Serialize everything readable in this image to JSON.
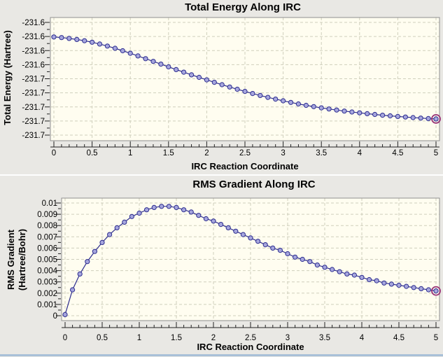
{
  "window": {
    "background": "#e9e8e4",
    "bottom_edge_color": "#a8c0d8"
  },
  "chart_data": [
    {
      "type": "line",
      "title": "Total Energy Along IRC",
      "xlabel": "IRC Reaction Coordinate",
      "ylabel": "Total Energy (Hartree)",
      "ylabel_lines": [
        "Total Energy (Hartree)"
      ],
      "xlim": [
        0,
        5
      ],
      "ylim": [
        -231.72,
        -231.6
      ],
      "grid": true,
      "legend": "none",
      "minor_x_step": 0.1,
      "xticks": [
        {
          "v": 0,
          "label": "0"
        },
        {
          "v": 0.5,
          "label": "0.5"
        },
        {
          "v": 1,
          "label": "1"
        },
        {
          "v": 1.5,
          "label": "1.5"
        },
        {
          "v": 2,
          "label": "2"
        },
        {
          "v": 2.5,
          "label": "2.5"
        },
        {
          "v": 3,
          "label": "3"
        },
        {
          "v": 3.5,
          "label": "3.5"
        },
        {
          "v": 4,
          "label": "4"
        },
        {
          "v": 4.5,
          "label": "4.5"
        },
        {
          "v": 5,
          "label": "5"
        }
      ],
      "yticks": [
        {
          "v": -231.6,
          "label": "-231.6"
        },
        {
          "v": -231.615,
          "label": "-231.6"
        },
        {
          "v": -231.63,
          "label": "-231.6"
        },
        {
          "v": -231.645,
          "label": "-231.6"
        },
        {
          "v": -231.66,
          "label": "-231.7"
        },
        {
          "v": -231.675,
          "label": "-231.7"
        },
        {
          "v": -231.69,
          "label": "-231.7"
        },
        {
          "v": -231.705,
          "label": "-231.7"
        },
        {
          "v": -231.72,
          "label": "-231.7"
        }
      ],
      "x": [
        0,
        0.1,
        0.2,
        0.3,
        0.4,
        0.5,
        0.6,
        0.7,
        0.8,
        0.9,
        1,
        1.1,
        1.2,
        1.3,
        1.4,
        1.5,
        1.6,
        1.7,
        1.8,
        1.9,
        2,
        2.1,
        2.2,
        2.3,
        2.4,
        2.5,
        2.6,
        2.7,
        2.8,
        2.9,
        3,
        3.1,
        3.2,
        3.3,
        3.4,
        3.5,
        3.6,
        3.7,
        3.8,
        3.9,
        4,
        4.1,
        4.2,
        4.3,
        4.4,
        4.5,
        4.6,
        4.7,
        4.8,
        4.9,
        5
      ],
      "y": [
        -231.6155,
        -231.6162,
        -231.6171,
        -231.6182,
        -231.6195,
        -231.6211,
        -231.623,
        -231.6252,
        -231.6276,
        -231.6302,
        -231.6329,
        -231.6357,
        -231.6386,
        -231.6415,
        -231.6444,
        -231.6473,
        -231.6502,
        -231.653,
        -231.6558,
        -231.6585,
        -231.6612,
        -231.6638,
        -231.6663,
        -231.6688,
        -231.6712,
        -231.6735,
        -231.6757,
        -231.6778,
        -231.6798,
        -231.6817,
        -231.6835,
        -231.6852,
        -231.6868,
        -231.6883,
        -231.6897,
        -231.691,
        -231.6922,
        -231.6933,
        -231.6944,
        -231.6954,
        -231.6963,
        -231.6972,
        -231.698,
        -231.6988,
        -231.6995,
        -231.7002,
        -231.7008,
        -231.7014,
        -231.7019,
        -231.7024,
        -231.7028
      ],
      "highlight_last_point": true,
      "colors": {
        "line": "#2d2d8f",
        "marker_fill": "#a6a6dd",
        "marker_stroke": "#2d2d8f",
        "grid": "#cfcfbc",
        "plot_bg": "#fffdf0",
        "highlight_ring": "#993377"
      }
    },
    {
      "type": "line",
      "title": "RMS Gradient Along IRC",
      "xlabel": "IRC Reaction Coordinate",
      "ylabel": "RMS Gradient (Hartree/Bohr)",
      "ylabel_lines": [
        "RMS Gradient",
        "(Hartree/Bohr)"
      ],
      "xlim": [
        0,
        5
      ],
      "ylim": [
        0,
        0.01
      ],
      "grid": true,
      "legend": "none",
      "minor_x_step": 0.1,
      "xticks": [
        {
          "v": 0,
          "label": "0"
        },
        {
          "v": 0.5,
          "label": "0.5"
        },
        {
          "v": 1,
          "label": "1"
        },
        {
          "v": 1.5,
          "label": "1.5"
        },
        {
          "v": 2,
          "label": "2"
        },
        {
          "v": 2.5,
          "label": "2.5"
        },
        {
          "v": 3,
          "label": "3"
        },
        {
          "v": 3.5,
          "label": "3.5"
        },
        {
          "v": 4,
          "label": "4"
        },
        {
          "v": 4.5,
          "label": "4.5"
        },
        {
          "v": 5,
          "label": "5"
        }
      ],
      "yticks": [
        {
          "v": 0.01,
          "label": "0.01"
        },
        {
          "v": 0.009,
          "label": "0.009"
        },
        {
          "v": 0.008,
          "label": "0.008"
        },
        {
          "v": 0.007,
          "label": "0.007"
        },
        {
          "v": 0.006,
          "label": "0.006"
        },
        {
          "v": 0.005,
          "label": "0.005"
        },
        {
          "v": 0.004,
          "label": "0.004"
        },
        {
          "v": 0.003,
          "label": "0.003"
        },
        {
          "v": 0.002,
          "label": "0.002"
        },
        {
          "v": 0.001,
          "label": "0.001"
        },
        {
          "v": 0,
          "label": "0"
        }
      ],
      "x": [
        0,
        0.1,
        0.2,
        0.3,
        0.4,
        0.5,
        0.6,
        0.7,
        0.8,
        0.9,
        1,
        1.1,
        1.2,
        1.3,
        1.4,
        1.5,
        1.6,
        1.7,
        1.8,
        1.9,
        2,
        2.1,
        2.2,
        2.3,
        2.4,
        2.5,
        2.6,
        2.7,
        2.8,
        2.9,
        3,
        3.1,
        3.2,
        3.3,
        3.4,
        3.5,
        3.6,
        3.7,
        3.8,
        3.9,
        4,
        4.1,
        4.2,
        4.3,
        4.4,
        4.5,
        4.6,
        4.7,
        4.8,
        4.9,
        5
      ],
      "y": [
        0.0001,
        0.0023,
        0.0037,
        0.0048,
        0.0057,
        0.0065,
        0.0072,
        0.0078,
        0.0083,
        0.0088,
        0.0091,
        0.0094,
        0.0096,
        0.0097,
        0.0097,
        0.0096,
        0.0094,
        0.0092,
        0.0089,
        0.0086,
        0.0084,
        0.0081,
        0.0078,
        0.0075,
        0.0072,
        0.0069,
        0.0066,
        0.0063,
        0.006,
        0.0058,
        0.0055,
        0.0052,
        0.005,
        0.0048,
        0.0045,
        0.0043,
        0.0041,
        0.0039,
        0.0037,
        0.0036,
        0.0034,
        0.0032,
        0.0031,
        0.0029,
        0.0028,
        0.0027,
        0.0026,
        0.0025,
        0.0024,
        0.0023,
        0.0022
      ],
      "highlight_last_point": true,
      "colors": {
        "line": "#2d2d8f",
        "marker_fill": "#a6a6dd",
        "marker_stroke": "#2d2d8f",
        "grid": "#cfcfbc",
        "plot_bg": "#fffdf0",
        "highlight_ring": "#993377"
      }
    }
  ]
}
